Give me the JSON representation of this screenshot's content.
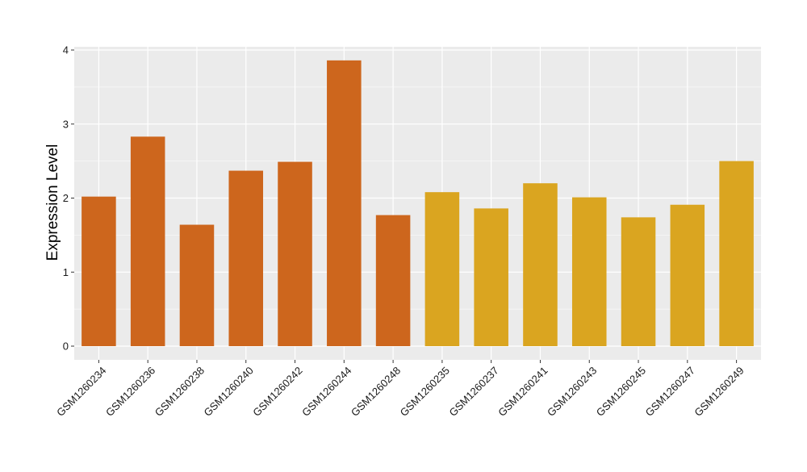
{
  "chart_data": {
    "type": "bar",
    "title": "",
    "xlabel": "",
    "ylabel": "Expression Level",
    "ylim": [
      0,
      4.0
    ],
    "yticks": [
      0,
      1,
      2,
      3,
      4
    ],
    "grid": true,
    "legend": "none",
    "categories": [
      "GSM1260234",
      "GSM1260236",
      "GSM1260238",
      "GSM1260240",
      "GSM1260242",
      "GSM1260244",
      "GSM1260248",
      "GSM1260235",
      "GSM1260237",
      "GSM1260241",
      "GSM1260243",
      "GSM1260245",
      "GSM1260247",
      "GSM1260249"
    ],
    "values": [
      2.02,
      2.83,
      1.64,
      2.37,
      2.49,
      3.86,
      1.77,
      2.08,
      1.86,
      2.2,
      2.01,
      1.74,
      1.91,
      2.5
    ],
    "group": [
      0,
      0,
      0,
      0,
      0,
      0,
      0,
      1,
      1,
      1,
      1,
      1,
      1,
      1
    ],
    "colors": {
      "group_colors": [
        "#CD661D",
        "#DAA520"
      ],
      "panel_background": "#EBEBEB",
      "grid_line": "#FFFFFF"
    }
  }
}
